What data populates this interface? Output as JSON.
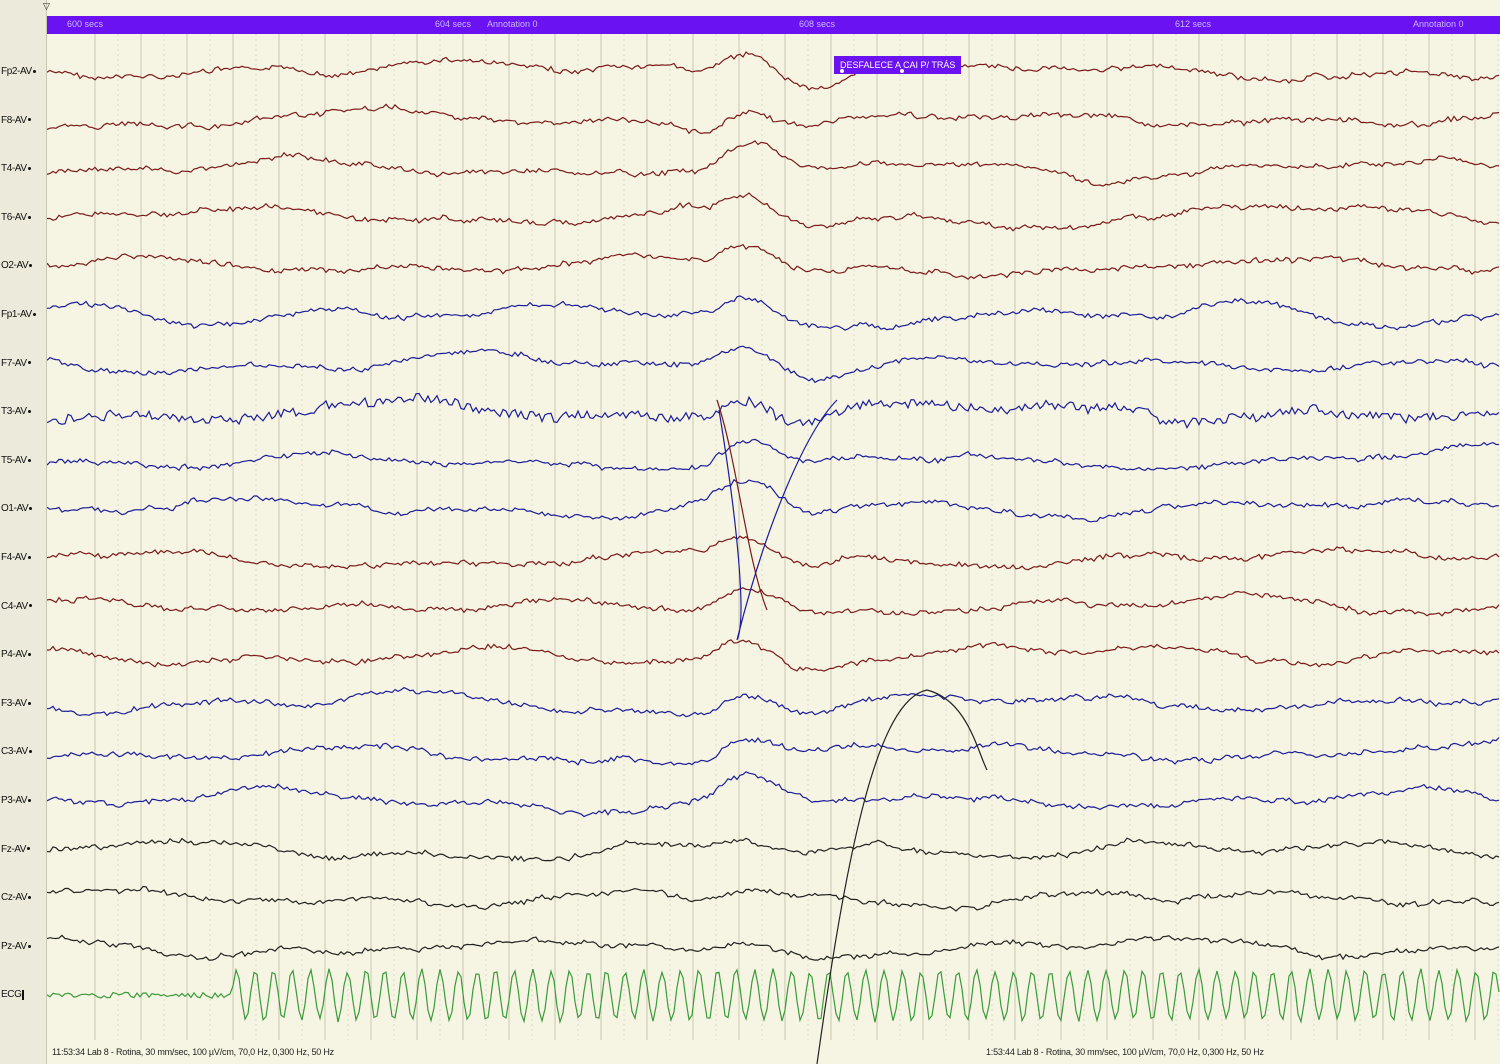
{
  "timebar": {
    "marker_start": "▽",
    "labels": [
      "600 secs",
      "604 secs",
      "Annotation 0",
      "608 secs",
      "612 secs",
      "Annotation 0"
    ]
  },
  "annotation": {
    "text": "DESFALECE A CAI P/ TRÁS"
  },
  "channels": [
    {
      "label": "Fp2-AV",
      "color": "#7a1a1a"
    },
    {
      "label": "F8-AV",
      "color": "#7a1a1a"
    },
    {
      "label": "T4-AV",
      "color": "#7a1a1a"
    },
    {
      "label": "T6-AV",
      "color": "#7a1a1a"
    },
    {
      "label": "O2-AV",
      "color": "#7a1a1a"
    },
    {
      "label": "Fp1-AV",
      "color": "#1c1c9a"
    },
    {
      "label": "F7-AV",
      "color": "#1c1c9a"
    },
    {
      "label": "T3-AV",
      "color": "#1c1c9a"
    },
    {
      "label": "T5-AV",
      "color": "#1c1c9a"
    },
    {
      "label": "O1-AV",
      "color": "#1c1c9a"
    },
    {
      "label": "F4-AV",
      "color": "#7a1a1a"
    },
    {
      "label": "C4-AV",
      "color": "#7a1a1a"
    },
    {
      "label": "P4-AV",
      "color": "#7a1a1a"
    },
    {
      "label": "F3-AV",
      "color": "#1c1c9a"
    },
    {
      "label": "C3-AV",
      "color": "#1c1c9a"
    },
    {
      "label": "P3-AV",
      "color": "#1c1c9a"
    },
    {
      "label": "Fz-AV",
      "color": "#222222"
    },
    {
      "label": "Cz-AV",
      "color": "#222222"
    },
    {
      "label": "Pz-AV",
      "color": "#222222"
    },
    {
      "label": "ECG",
      "color": "#3a9a3a"
    }
  ],
  "footer": {
    "left": "11:53:34 Lab 8 - Rotina, 30 mm/sec, 100 µV/cm, 70,0 Hz, 0,300 Hz, 50 Hz",
    "right": "1:53:44 Lab 8 - Rotina, 30 mm/sec, 100 µV/cm, 70,0 Hz, 0,300 Hz, 50 Hz"
  },
  "colors": {
    "timebar": "#6b12f3",
    "background": "#f6f5e3",
    "grid": "#c8c6b0"
  }
}
